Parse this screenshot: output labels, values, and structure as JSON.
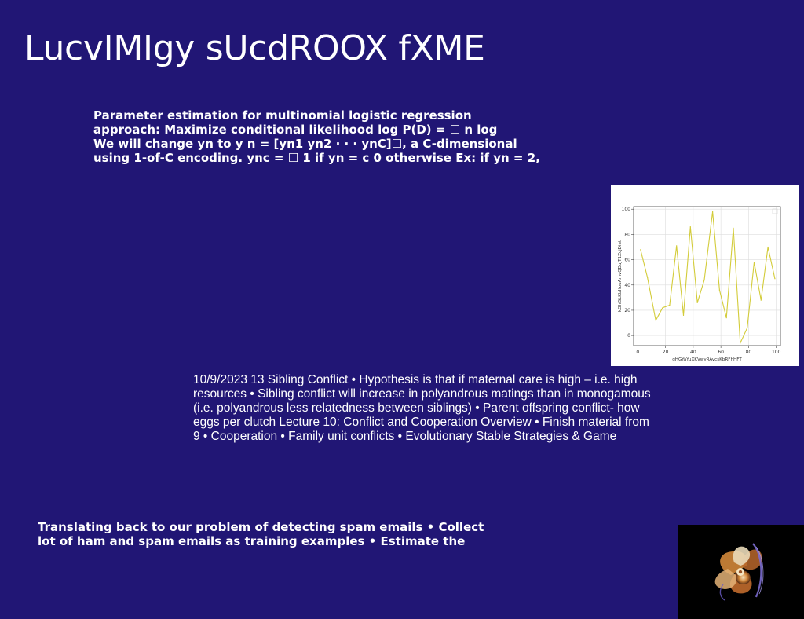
{
  "slide": {
    "title": "LucvIMIgy sUcdROOX fXME"
  },
  "paragraphs": [
    {
      "lines": [
        "Parameter estimation for multinomial logistic regression",
        "approach: Maximize conditional likelihood log P(D) = ☐ n log",
        "We will change yn to y n = [yn1 yn2 · · · ynC]☐, a C-dimensional",
        "using 1-of-C encoding. ync = ☐ 1 if yn = c 0 otherwise Ex: if yn = 2,"
      ]
    },
    {
      "lines": [
        "10/9/2023 13 Sibling Conflict • Hypothesis is that if maternal care is high – i.e. high",
        "resources • Sibling conflict will increase in polyandrous matings than in monogamous",
        "(i.e. polyandrous less relatedness between siblings) • Parent offspring conflict- how",
        "eggs per clutch Lecture 10: Conflict and Cooperation Overview • Finish material from",
        "9 • Cooperation • Family unit conflicts • Evolutionary Stable Strategies & Game"
      ]
    },
    {
      "lines": [
        "Translating back to our problem of detecting spam emails • Collect",
        "lot of ham and spam emails as training examples • Estimate the"
      ]
    }
  ],
  "chart_data": {
    "type": "line",
    "title": "",
    "xlabel": "gHGYaYuXKVwyRAvcsKbRFhHFT",
    "ylabel": "kOhiSLKbHouAmvQDuJT1ZcjDiat",
    "xlim": [
      -3,
      103
    ],
    "ylim": [
      -8,
      102
    ],
    "xticks": [
      0,
      20,
      40,
      60,
      80,
      100
    ],
    "yticks": [
      0,
      20,
      40,
      60,
      80,
      100
    ],
    "x_tick_labels": [
      "0",
      "20",
      "40",
      "60",
      "80",
      "100"
    ],
    "y_tick_labels": [
      "0",
      "20",
      "40",
      "60",
      "80",
      "100"
    ],
    "grid": true,
    "line_color": "#d3cc3a",
    "series": [
      {
        "x": [
          2,
          7,
          13,
          18,
          23,
          28,
          33,
          38,
          43,
          48,
          54,
          59,
          64,
          69,
          74,
          79,
          84,
          89,
          94,
          99
        ],
        "y": [
          68,
          46,
          12,
          22,
          24,
          71,
          16,
          86,
          26,
          44,
          98,
          36,
          14,
          85,
          -6,
          6,
          58,
          28,
          70,
          45
        ]
      }
    ]
  },
  "image": {
    "description": "",
    "colors": {
      "background": "#000000",
      "orange": "#d2873a",
      "cream": "#e9d9b8",
      "violet": "#7b6bd0"
    }
  }
}
